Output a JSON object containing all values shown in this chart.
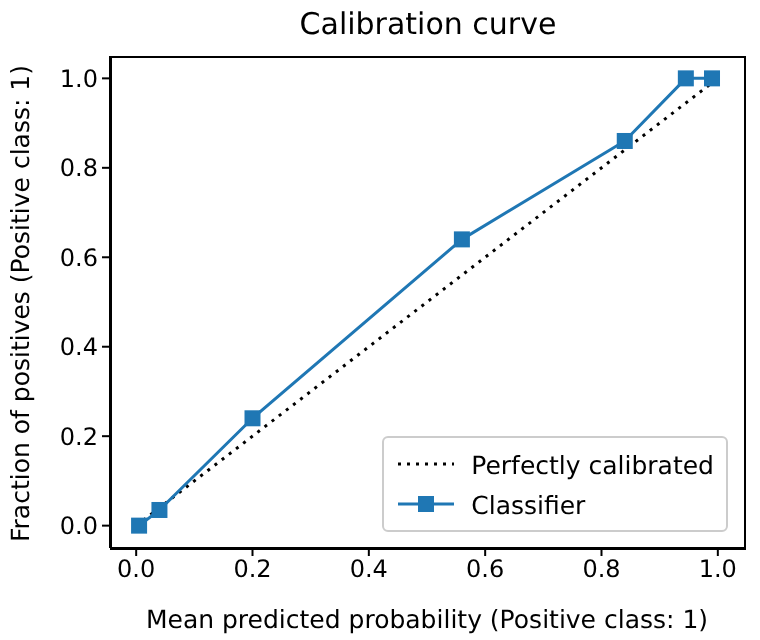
{
  "chart_data": {
    "type": "line",
    "title": "Calibration curve",
    "xlabel": "Mean predicted probability (Positive class: 1)",
    "ylabel": "Fraction of positives (Positive class: 1)",
    "xlim": [
      -0.045,
      1.045
    ],
    "ylim": [
      -0.05,
      1.05
    ],
    "xticks": [
      {
        "value": 0,
        "label": "0.0"
      },
      {
        "value": 0.2,
        "label": "0.2"
      },
      {
        "value": 0.4,
        "label": "0.4"
      },
      {
        "value": 0.6,
        "label": "0.6"
      },
      {
        "value": 0.8,
        "label": "0.8"
      },
      {
        "value": 1,
        "label": "1.0"
      }
    ],
    "yticks": [
      {
        "value": 0,
        "label": "0.0"
      },
      {
        "value": 0.2,
        "label": "0.2"
      },
      {
        "value": 0.4,
        "label": "0.4"
      },
      {
        "value": 0.6,
        "label": "0.6"
      },
      {
        "value": 0.8,
        "label": "0.8"
      },
      {
        "value": 1,
        "label": "1.0"
      }
    ],
    "grid": false,
    "legend": "bottom right",
    "series": [
      {
        "name": "Perfectly calibrated",
        "color": "#000000",
        "x": [
          0,
          1
        ],
        "values": [
          0,
          1
        ],
        "line_style": "dotted",
        "marker": "none"
      },
      {
        "name": "Classifier",
        "color": "#1f77b4",
        "x": [
          0.005,
          0.04,
          0.2,
          0.56,
          0.84,
          0.945,
          0.99
        ],
        "values": [
          0,
          0.035,
          0.24,
          0.64,
          0.86,
          1,
          1
        ],
        "line_style": "solid",
        "marker": "square"
      }
    ]
  }
}
